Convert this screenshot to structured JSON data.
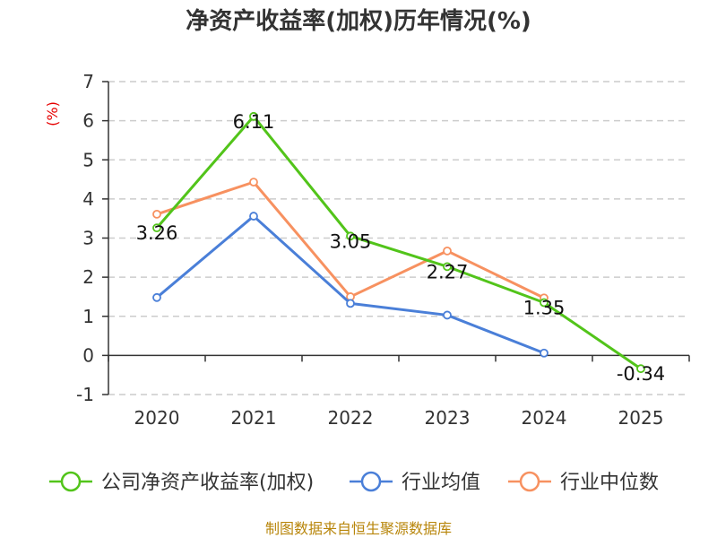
{
  "chart_data": {
    "type": "line",
    "title": "净资产收益率(加权)历年情况(%)",
    "ylabel": "(%)",
    "xlabel": "",
    "categories": [
      "2020",
      "2021",
      "2022",
      "2023",
      "2024",
      "2025"
    ],
    "ylim": [
      -1,
      7
    ],
    "yticks": [
      -1,
      0,
      1,
      2,
      3,
      4,
      5,
      6,
      7
    ],
    "grid": true,
    "legend_position": "bottom",
    "series": [
      {
        "name": "公司净资产收益率(加权)",
        "color": "#52c41a",
        "values": [
          3.26,
          6.11,
          3.05,
          2.27,
          1.35,
          -0.34
        ],
        "labels": [
          "3.26",
          "6.11",
          "3.05",
          "2.27",
          "1.35",
          "-0.34"
        ]
      },
      {
        "name": "行业均值",
        "color": "#4a7fd8",
        "values": [
          1.48,
          3.56,
          1.33,
          1.03,
          0.06,
          null
        ]
      },
      {
        "name": "行业中位数",
        "color": "#f79160",
        "values": [
          3.61,
          4.43,
          1.5,
          2.67,
          1.47,
          null
        ]
      }
    ],
    "source": "制图数据来自恒生聚源数据库"
  }
}
